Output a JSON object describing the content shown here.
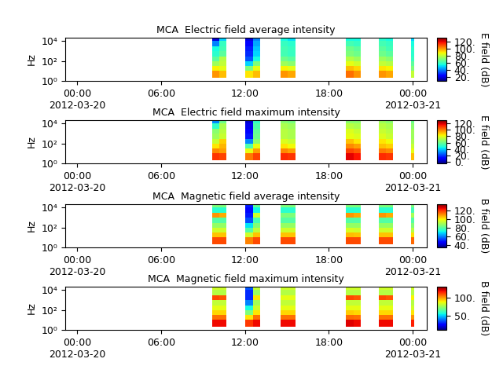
{
  "chart_data": [
    {
      "type": "heatmap",
      "title": "MCA  Electric field average intensity",
      "y_label": "Hz",
      "colorbar_label": "E field (dB)",
      "log": "y",
      "xlim": [
        -0.84,
        25.0
      ],
      "xticks": [
        {
          "value": 0,
          "label": "00:00\n2012-03-20"
        },
        {
          "value": 6,
          "label": "06:00"
        },
        {
          "value": 12,
          "label": "12:00"
        },
        {
          "value": 18,
          "label": "18:00"
        },
        {
          "value": 24,
          "label": "00:00\n2012-03-21"
        }
      ],
      "ylim": [
        1,
        22000
      ],
      "yticks": [
        {
          "value": 1,
          "label": "10⁰"
        },
        {
          "value": 100,
          "label": "10²"
        },
        {
          "value": 10000,
          "label": "10⁴"
        }
      ],
      "x_edges": [
        9.66,
        10.16,
        10.67,
        12.02,
        12.56,
        13.1,
        14.55,
        15.07,
        15.6,
        19.2,
        19.75,
        20.3,
        21.6,
        22.1,
        22.6,
        23.9,
        24.1
      ],
      "y_edges": [
        2,
        10,
        30,
        100,
        300,
        1000,
        3000,
        10000,
        20000
      ],
      "cells": [
        [
          100,
          95,
          null,
          90,
          95,
          null,
          100,
          98,
          null,
          105,
          100,
          null,
          100,
          98,
          null,
          80
        ],
        [
          88,
          85,
          null,
          70,
          85,
          null,
          88,
          85,
          null,
          95,
          92,
          null,
          90,
          88,
          null,
          70
        ],
        [
          75,
          80,
          null,
          50,
          70,
          null,
          75,
          72,
          null,
          85,
          82,
          null,
          80,
          78,
          null,
          65
        ],
        [
          65,
          78,
          null,
          35,
          55,
          null,
          68,
          65,
          null,
          78,
          75,
          null,
          75,
          72,
          null,
          60
        ],
        [
          58,
          65,
          null,
          30,
          50,
          null,
          62,
          60,
          null,
          70,
          68,
          null,
          68,
          65,
          null,
          58
        ],
        [
          55,
          62,
          null,
          28,
          48,
          null,
          62,
          60,
          null,
          68,
          65,
          null,
          65,
          62,
          null,
          58
        ],
        [
          40,
          60,
          null,
          25,
          45,
          null,
          60,
          58,
          null,
          62,
          60,
          null,
          62,
          60,
          null,
          55
        ],
        [
          20,
          50,
          null,
          20,
          40,
          null,
          55,
          52,
          null,
          55,
          55,
          null,
          58,
          55,
          null,
          50
        ]
      ],
      "colorbar_range": [
        10,
        130
      ],
      "colorbar_ticks": [
        {
          "value": 20,
          "label": "20."
        },
        {
          "value": 40,
          "label": "40."
        },
        {
          "value": 60,
          "label": "60."
        },
        {
          "value": 80,
          "label": "80."
        },
        {
          "value": 100,
          "label": "100."
        },
        {
          "value": 120,
          "label": "120."
        }
      ]
    },
    {
      "type": "heatmap",
      "title": "MCA  Electric field maximum intensity",
      "y_label": "Hz",
      "colorbar_label": "E field (dB)",
      "log": "y",
      "xlim": [
        -0.84,
        25.0
      ],
      "xticks": [
        {
          "value": 0,
          "label": "00:00\n2012-03-20"
        },
        {
          "value": 6,
          "label": "06:00"
        },
        {
          "value": 12,
          "label": "12:00"
        },
        {
          "value": 18,
          "label": "18:00"
        },
        {
          "value": 24,
          "label": "00:00\n2012-03-21"
        }
      ],
      "ylim": [
        1,
        22000
      ],
      "yticks": [
        {
          "value": 1,
          "label": "10⁰"
        },
        {
          "value": 100,
          "label": "10²"
        },
        {
          "value": 10000,
          "label": "10⁴"
        }
      ],
      "x_edges": [
        9.66,
        10.16,
        10.67,
        12.02,
        12.56,
        13.1,
        14.55,
        15.07,
        15.6,
        19.2,
        19.75,
        20.3,
        21.6,
        22.1,
        22.6,
        23.9,
        24.1
      ],
      "y_edges": [
        2,
        10,
        30,
        100,
        300,
        1000,
        3000,
        10000,
        20000
      ],
      "cells": [
        [
          110,
          108,
          null,
          100,
          108,
          null,
          112,
          110,
          null,
          118,
          115,
          null,
          112,
          110,
          null,
          90
        ],
        [
          98,
          95,
          null,
          80,
          95,
          null,
          98,
          95,
          null,
          108,
          105,
          null,
          100,
          98,
          null,
          80
        ],
        [
          85,
          92,
          null,
          55,
          80,
          null,
          85,
          82,
          null,
          98,
          95,
          null,
          90,
          88,
          null,
          75
        ],
        [
          75,
          88,
          null,
          30,
          65,
          null,
          78,
          75,
          null,
          90,
          85,
          null,
          85,
          82,
          null,
          70
        ],
        [
          68,
          75,
          null,
          15,
          60,
          null,
          72,
          70,
          null,
          80,
          78,
          null,
          78,
          75,
          null,
          68
        ],
        [
          65,
          72,
          null,
          10,
          58,
          null,
          72,
          70,
          null,
          78,
          75,
          null,
          75,
          72,
          null,
          68
        ],
        [
          50,
          70,
          null,
          8,
          55,
          null,
          70,
          68,
          null,
          72,
          70,
          null,
          72,
          70,
          null,
          65
        ],
        [
          30,
          60,
          null,
          5,
          50,
          null,
          65,
          62,
          null,
          65,
          65,
          null,
          68,
          65,
          null,
          60
        ]
      ],
      "colorbar_range": [
        -5,
        130
      ],
      "colorbar_ticks": [
        {
          "value": 0,
          "label": "0."
        },
        {
          "value": 20,
          "label": "20."
        },
        {
          "value": 40,
          "label": "40."
        },
        {
          "value": 60,
          "label": "60."
        },
        {
          "value": 80,
          "label": "80."
        },
        {
          "value": 100,
          "label": "100."
        },
        {
          "value": 120,
          "label": "120."
        }
      ]
    },
    {
      "type": "heatmap",
      "title": "MCA  Magnetic field average intensity",
      "y_label": "Hz",
      "colorbar_label": "B field (dB)",
      "log": "y",
      "xlim": [
        -0.84,
        25.0
      ],
      "xticks": [
        {
          "value": 0,
          "label": "00:00\n2012-03-20"
        },
        {
          "value": 6,
          "label": "06:00"
        },
        {
          "value": 12,
          "label": "12:00"
        },
        {
          "value": 18,
          "label": "18:00"
        },
        {
          "value": 24,
          "label": "00:00\n2012-03-21"
        }
      ],
      "ylim": [
        1,
        22000
      ],
      "yticks": [
        {
          "value": 1,
          "label": "10⁰"
        },
        {
          "value": 100,
          "label": "10²"
        },
        {
          "value": 10000,
          "label": "10⁴"
        }
      ],
      "x_edges": [
        9.66,
        10.16,
        10.67,
        12.02,
        12.56,
        13.1,
        14.55,
        15.07,
        15.6,
        19.2,
        19.75,
        20.3,
        21.6,
        22.1,
        22.6,
        23.9,
        24.1
      ],
      "y_edges": [
        2,
        10,
        30,
        100,
        300,
        1000,
        3000,
        10000,
        20000
      ],
      "cells": [
        [
          118,
          118,
          null,
          112,
          118,
          null,
          118,
          118,
          null,
          118,
          118,
          null,
          118,
          118,
          null,
          115
        ],
        [
          105,
          105,
          null,
          95,
          105,
          null,
          105,
          105,
          null,
          106,
          105,
          null,
          105,
          105,
          null,
          102
        ],
        [
          95,
          95,
          null,
          80,
          93,
          null,
          95,
          95,
          null,
          96,
          95,
          null,
          95,
          95,
          null,
          92
        ],
        [
          88,
          88,
          null,
          70,
          86,
          null,
          88,
          88,
          null,
          88,
          88,
          null,
          88,
          88,
          null,
          86
        ],
        [
          80,
          80,
          null,
          55,
          78,
          null,
          80,
          80,
          null,
          80,
          80,
          null,
          80,
          80,
          null,
          80
        ],
        [
          110,
          108,
          null,
          50,
          95,
          null,
          85,
          85,
          null,
          110,
          108,
          null,
          110,
          108,
          null,
          90
        ],
        [
          75,
          75,
          null,
          48,
          72,
          null,
          75,
          75,
          null,
          75,
          75,
          null,
          75,
          75,
          null,
          78
        ],
        [
          85,
          85,
          null,
          50,
          82,
          null,
          85,
          85,
          null,
          85,
          85,
          null,
          85,
          85,
          null,
          85
        ]
      ],
      "colorbar_range": [
        35,
        135
      ],
      "colorbar_ticks": [
        {
          "value": 40,
          "label": "40."
        },
        {
          "value": 60,
          "label": "60."
        },
        {
          "value": 80,
          "label": "80."
        },
        {
          "value": 100,
          "label": "100."
        },
        {
          "value": 120,
          "label": "120."
        }
      ]
    },
    {
      "type": "heatmap",
      "title": "MCA  Magnetic field maximum intensity",
      "y_label": "Hz",
      "colorbar_label": "B field (dB)",
      "log": "y",
      "xlim": [
        -0.84,
        25.0
      ],
      "xticks": [
        {
          "value": 0,
          "label": "00:00\n2012-03-20"
        },
        {
          "value": 6,
          "label": "06:00"
        },
        {
          "value": 12,
          "label": "12:00"
        },
        {
          "value": 18,
          "label": "18:00"
        },
        {
          "value": 24,
          "label": "00:00\n2012-03-21"
        }
      ],
      "ylim": [
        1,
        22000
      ],
      "yticks": [
        {
          "value": 1,
          "label": "10⁰"
        },
        {
          "value": 100,
          "label": "10²"
        },
        {
          "value": 10000,
          "label": "10⁴"
        }
      ],
      "x_edges": [
        9.66,
        10.16,
        10.67,
        12.02,
        12.56,
        13.1,
        14.55,
        15.07,
        15.6,
        19.2,
        19.75,
        20.3,
        21.6,
        22.1,
        22.6,
        23.9,
        24.1
      ],
      "y_edges": [
        2,
        10,
        30,
        100,
        300,
        1000,
        3000,
        10000,
        20000
      ],
      "cells": [
        [
          118,
          118,
          null,
          112,
          118,
          null,
          118,
          118,
          null,
          120,
          118,
          null,
          118,
          118,
          null,
          115
        ],
        [
          105,
          105,
          null,
          90,
          105,
          null,
          105,
          105,
          null,
          106,
          105,
          null,
          105,
          105,
          null,
          100
        ],
        [
          92,
          92,
          null,
          70,
          90,
          null,
          92,
          92,
          null,
          93,
          92,
          null,
          92,
          92,
          null,
          90
        ],
        [
          85,
          85,
          null,
          55,
          82,
          null,
          85,
          85,
          null,
          85,
          85,
          null,
          85,
          85,
          null,
          82
        ],
        [
          80,
          80,
          null,
          40,
          76,
          null,
          80,
          80,
          null,
          80,
          80,
          null,
          80,
          80,
          null,
          78
        ],
        [
          110,
          108,
          null,
          30,
          90,
          null,
          85,
          85,
          null,
          110,
          108,
          null,
          110,
          108,
          null,
          88
        ],
        [
          78,
          78,
          null,
          30,
          75,
          null,
          78,
          78,
          null,
          78,
          78,
          null,
          78,
          78,
          null,
          78
        ],
        [
          82,
          82,
          null,
          35,
          80,
          null,
          82,
          82,
          null,
          82,
          82,
          null,
          82,
          82,
          null,
          82
        ]
      ],
      "colorbar_range": [
        10,
        130
      ],
      "colorbar_ticks": [
        {
          "value": 50,
          "label": "50."
        },
        {
          "value": 100,
          "label": "100."
        }
      ]
    }
  ]
}
